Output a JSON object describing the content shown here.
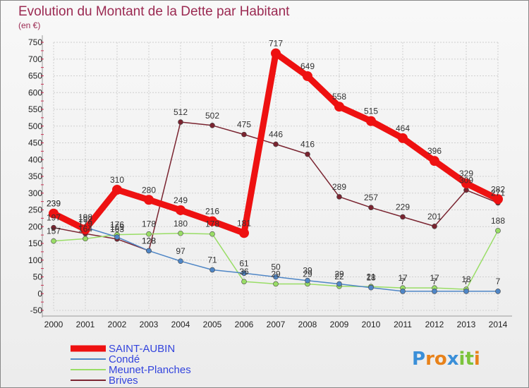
{
  "chart_data": {
    "type": "line",
    "title": "Evolution du Montant de la Dette par Habitant",
    "subtitle": "(en €)",
    "x": [
      "2000",
      "2001",
      "2002",
      "2003",
      "2004",
      "2005",
      "2006",
      "2007",
      "2008",
      "2009",
      "2010",
      "2011",
      "2012",
      "2013",
      "2014"
    ],
    "ylim": [
      -50,
      750
    ],
    "yticks": [
      -50,
      0,
      50,
      100,
      150,
      200,
      250,
      300,
      350,
      400,
      450,
      500,
      550,
      600,
      650,
      700,
      750
    ],
    "grid": true,
    "legend_position": "bottom-left",
    "series": [
      {
        "name": "Brives",
        "color": "#7a2430",
        "values": [
          197,
          179,
          163,
          128,
          512,
          502,
          475,
          446,
          416,
          289,
          257,
          229,
          201,
          309,
          271
        ]
      },
      {
        "name": "Meunet-Planches",
        "color": "#99dd66",
        "values": [
          157,
          164,
          176,
          178,
          180,
          178,
          36,
          29,
          29,
          22,
          21,
          17,
          17,
          13,
          188
        ]
      },
      {
        "name": "Condé",
        "color": "#4f86c6",
        "values": [
          239,
          198,
          169,
          128,
          97,
          71,
          61,
          50,
          39,
          29,
          18,
          7,
          7,
          7,
          7
        ]
      },
      {
        "name": "SAINT-AUBIN",
        "color": "#ee1111",
        "values": [
          239,
          192,
          310,
          280,
          249,
          216,
          181,
          717,
          649,
          558,
          515,
          464,
          396,
          329,
          282
        ]
      }
    ],
    "legend_order": [
      "SAINT-AUBIN",
      "Condé",
      "Meunet-Planches",
      "Brives"
    ]
  },
  "brand": {
    "text": "Proxiti"
  }
}
